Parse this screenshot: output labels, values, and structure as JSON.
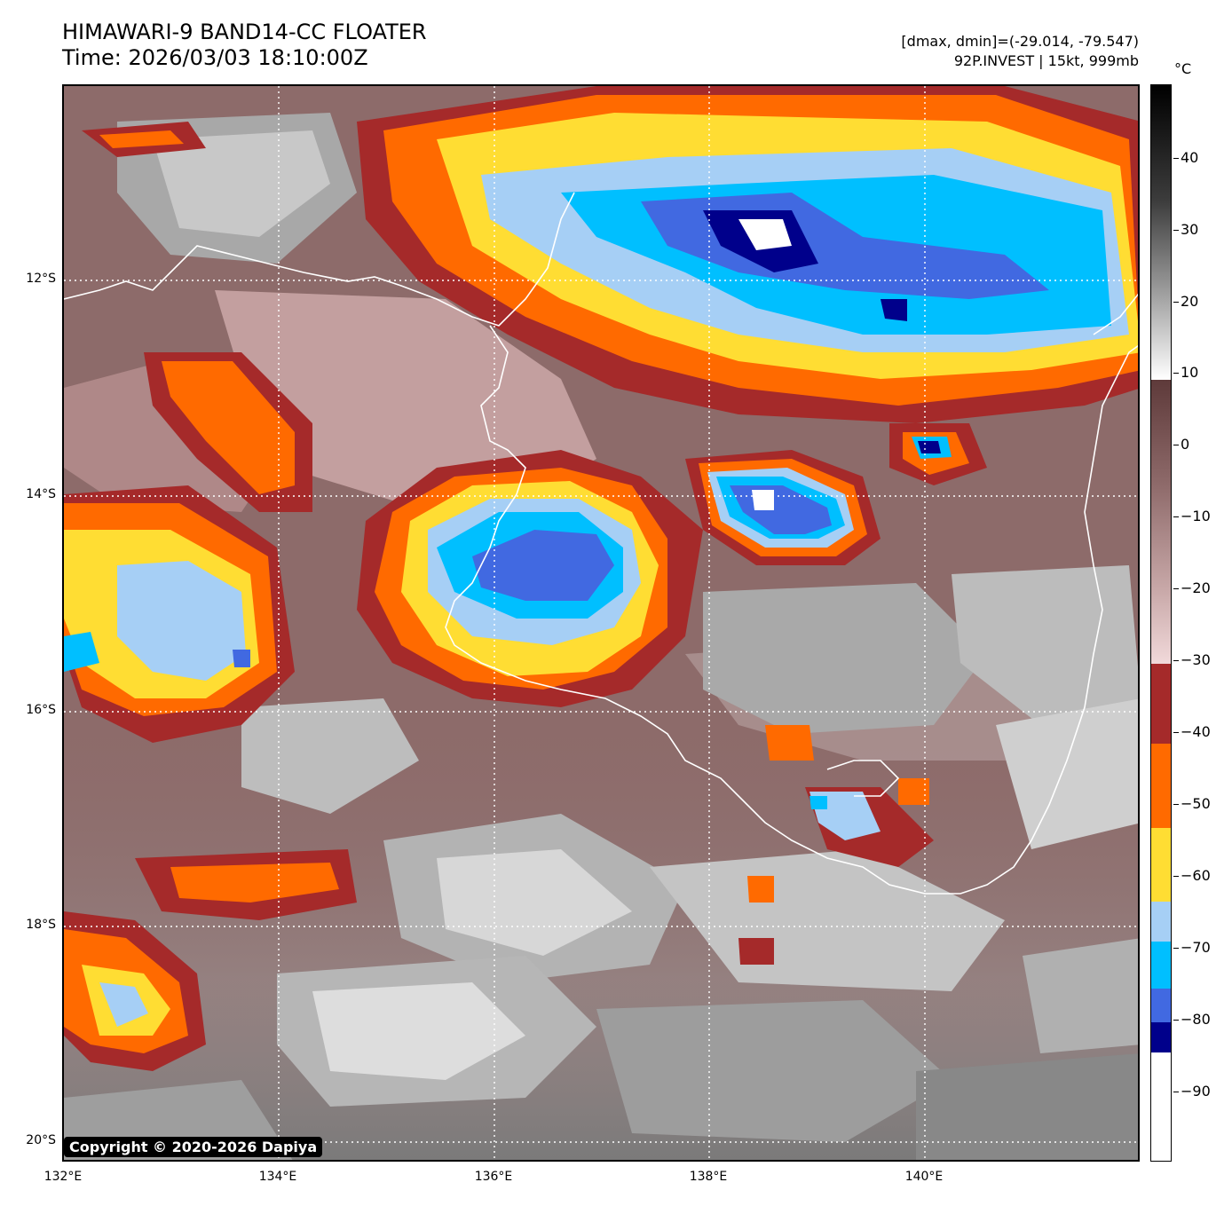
{
  "header": {
    "title_line1": "HIMAWARI-9 BAND14-CC FLOATER",
    "title_line2": "Time: 2026/03/03 18:10:00Z",
    "info_line1": "[dmax, dmin]=(-29.014, -79.547)",
    "info_line2": "92P.INVEST | 15kt, 999mb"
  },
  "map": {
    "lat_labels": [
      "12°S",
      "14°S",
      "16°S",
      "18°S",
      "20°S"
    ],
    "lon_labels": [
      "132°E",
      "134°E",
      "136°E",
      "138°E",
      "140°E"
    ],
    "copyright": "Copyright © 2020-2026 Dapiya"
  },
  "colorbar": {
    "unit": "°C",
    "labels": [
      "40",
      "30",
      "20",
      "10",
      "0",
      "−10",
      "−20",
      "−30",
      "−40",
      "−50",
      "−60",
      "−70",
      "−80",
      "−90"
    ],
    "colors": {
      "black": "#000000",
      "white": "#ffffff",
      "dark_brown": "#5e3a3a",
      "pink": "#f1d9da",
      "red": "#a52a2a",
      "orange": "#ff6a00",
      "yellow": "#ffdd33",
      "light_blue": "#a6cff5",
      "cyan": "#00bfff",
      "blue": "#4169e1",
      "navy": "#00008b"
    }
  }
}
